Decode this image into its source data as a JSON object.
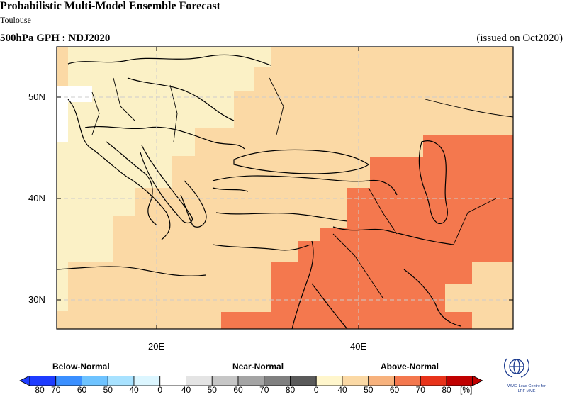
{
  "header": {
    "title": "Probabilistic Multi-Model Ensemble Forecast",
    "subtitle": "Toulouse",
    "field_label": "500hPa GPH : NDJ2020",
    "issued": "(issued on Oct2020)"
  },
  "map": {
    "region": "Eastern Mediterranean / Middle East",
    "lat_labels": [
      "50N",
      "40N",
      "30N"
    ],
    "lon_labels": [
      "20E",
      "40E"
    ],
    "gridlines": true
  },
  "legend": {
    "below_label": "Below-Normal",
    "near_label": "Near-Normal",
    "above_label": "Above-Normal",
    "ticks": [
      "80",
      "70",
      "60",
      "50",
      "40",
      "0",
      "40",
      "50",
      "60",
      "70",
      "80",
      "0",
      "40",
      "50",
      "60",
      "70",
      "80"
    ],
    "unit": "[%]",
    "colors": [
      "#1e3cff",
      "#3a8fff",
      "#6ec3ff",
      "#a8e2ff",
      "#dcf6ff",
      "#ffffff",
      "#e4e4e4",
      "#c6c6c6",
      "#a4a4a4",
      "#808080",
      "#5a5a5a",
      "#fff6cc",
      "#fbd9a5",
      "#f7b27d",
      "#f4784e",
      "#e8331a",
      "#c00000"
    ]
  },
  "logo": {
    "line1": "WMO Lead Centre for",
    "line2": "LRF MME"
  },
  "colors": {
    "light_yellow": "#fbf1c6",
    "light_orange": "#fbd9a5",
    "orange": "#f4784e"
  }
}
